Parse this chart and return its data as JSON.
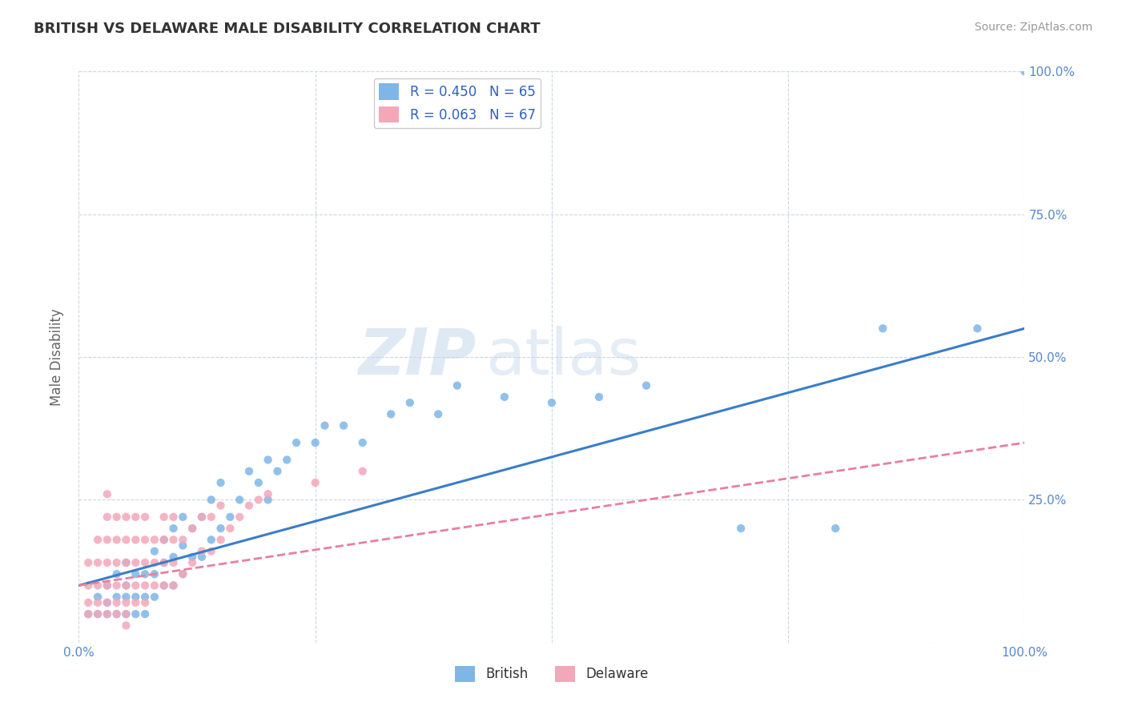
{
  "title": "BRITISH VS DELAWARE MALE DISABILITY CORRELATION CHART",
  "source": "Source: ZipAtlas.com",
  "ylabel": "Male Disability",
  "xlim": [
    0,
    1
  ],
  "ylim": [
    0,
    1
  ],
  "xticks": [
    0.0,
    0.25,
    0.5,
    0.75,
    1.0
  ],
  "xticklabels": [
    "0.0%",
    "",
    "",
    "",
    "100.0%"
  ],
  "yticks_right": [
    0.0,
    0.25,
    0.5,
    0.75,
    1.0
  ],
  "yticklabels_right": [
    "",
    "25.0%",
    "50.0%",
    "75.0%",
    "100.0%"
  ],
  "british_color": "#7EB6E8",
  "delaware_color": "#F4A7B9",
  "british_line_color": "#3A7DC9",
  "delaware_line_color": "#E87FA0",
  "R_british": 0.45,
  "N_british": 65,
  "R_delaware": 0.063,
  "N_delaware": 67,
  "legend_british": "British",
  "legend_delaware": "Delaware",
  "watermark": "ZIPatlas",
  "background_color": "#ffffff",
  "grid_color": "#c8d8e8",
  "british_line_x0": 0.0,
  "british_line_y0": 0.1,
  "british_line_x1": 1.0,
  "british_line_y1": 0.55,
  "delaware_line_x0": 0.0,
  "delaware_line_y0": 0.1,
  "delaware_line_x1": 1.0,
  "delaware_line_y1": 0.35,
  "british_x": [
    0.01,
    0.02,
    0.02,
    0.03,
    0.03,
    0.03,
    0.04,
    0.04,
    0.04,
    0.05,
    0.05,
    0.05,
    0.05,
    0.06,
    0.06,
    0.06,
    0.07,
    0.07,
    0.07,
    0.08,
    0.08,
    0.08,
    0.09,
    0.09,
    0.09,
    0.1,
    0.1,
    0.1,
    0.11,
    0.11,
    0.11,
    0.12,
    0.12,
    0.13,
    0.13,
    0.14,
    0.14,
    0.15,
    0.15,
    0.16,
    0.17,
    0.18,
    0.19,
    0.2,
    0.2,
    0.21,
    0.22,
    0.23,
    0.25,
    0.26,
    0.28,
    0.3,
    0.33,
    0.35,
    0.38,
    0.4,
    0.45,
    0.5,
    0.55,
    0.6,
    0.7,
    0.8,
    0.85,
    0.95,
    1.0
  ],
  "british_y": [
    0.05,
    0.05,
    0.08,
    0.05,
    0.07,
    0.1,
    0.05,
    0.08,
    0.12,
    0.05,
    0.08,
    0.1,
    0.14,
    0.05,
    0.08,
    0.12,
    0.05,
    0.08,
    0.12,
    0.08,
    0.12,
    0.16,
    0.1,
    0.14,
    0.18,
    0.1,
    0.15,
    0.2,
    0.12,
    0.17,
    0.22,
    0.15,
    0.2,
    0.15,
    0.22,
    0.18,
    0.25,
    0.2,
    0.28,
    0.22,
    0.25,
    0.3,
    0.28,
    0.25,
    0.32,
    0.3,
    0.32,
    0.35,
    0.35,
    0.38,
    0.38,
    0.35,
    0.4,
    0.42,
    0.4,
    0.45,
    0.43,
    0.42,
    0.43,
    0.45,
    0.2,
    0.2,
    0.55,
    0.55,
    1.0
  ],
  "delaware_x": [
    0.01,
    0.01,
    0.01,
    0.01,
    0.02,
    0.02,
    0.02,
    0.02,
    0.02,
    0.03,
    0.03,
    0.03,
    0.03,
    0.03,
    0.03,
    0.03,
    0.04,
    0.04,
    0.04,
    0.04,
    0.04,
    0.04,
    0.05,
    0.05,
    0.05,
    0.05,
    0.05,
    0.05,
    0.06,
    0.06,
    0.06,
    0.06,
    0.06,
    0.07,
    0.07,
    0.07,
    0.07,
    0.07,
    0.08,
    0.08,
    0.08,
    0.09,
    0.09,
    0.09,
    0.09,
    0.1,
    0.1,
    0.1,
    0.1,
    0.11,
    0.11,
    0.12,
    0.12,
    0.13,
    0.13,
    0.14,
    0.14,
    0.15,
    0.15,
    0.16,
    0.17,
    0.18,
    0.19,
    0.2,
    0.25,
    0.3,
    0.05
  ],
  "delaware_y": [
    0.05,
    0.07,
    0.1,
    0.14,
    0.05,
    0.07,
    0.1,
    0.14,
    0.18,
    0.05,
    0.07,
    0.1,
    0.14,
    0.18,
    0.22,
    0.26,
    0.05,
    0.07,
    0.1,
    0.14,
    0.18,
    0.22,
    0.05,
    0.07,
    0.1,
    0.14,
    0.18,
    0.22,
    0.07,
    0.1,
    0.14,
    0.18,
    0.22,
    0.07,
    0.1,
    0.14,
    0.18,
    0.22,
    0.1,
    0.14,
    0.18,
    0.1,
    0.14,
    0.18,
    0.22,
    0.1,
    0.14,
    0.18,
    0.22,
    0.12,
    0.18,
    0.14,
    0.2,
    0.16,
    0.22,
    0.16,
    0.22,
    0.18,
    0.24,
    0.2,
    0.22,
    0.24,
    0.25,
    0.26,
    0.28,
    0.3,
    0.03
  ]
}
